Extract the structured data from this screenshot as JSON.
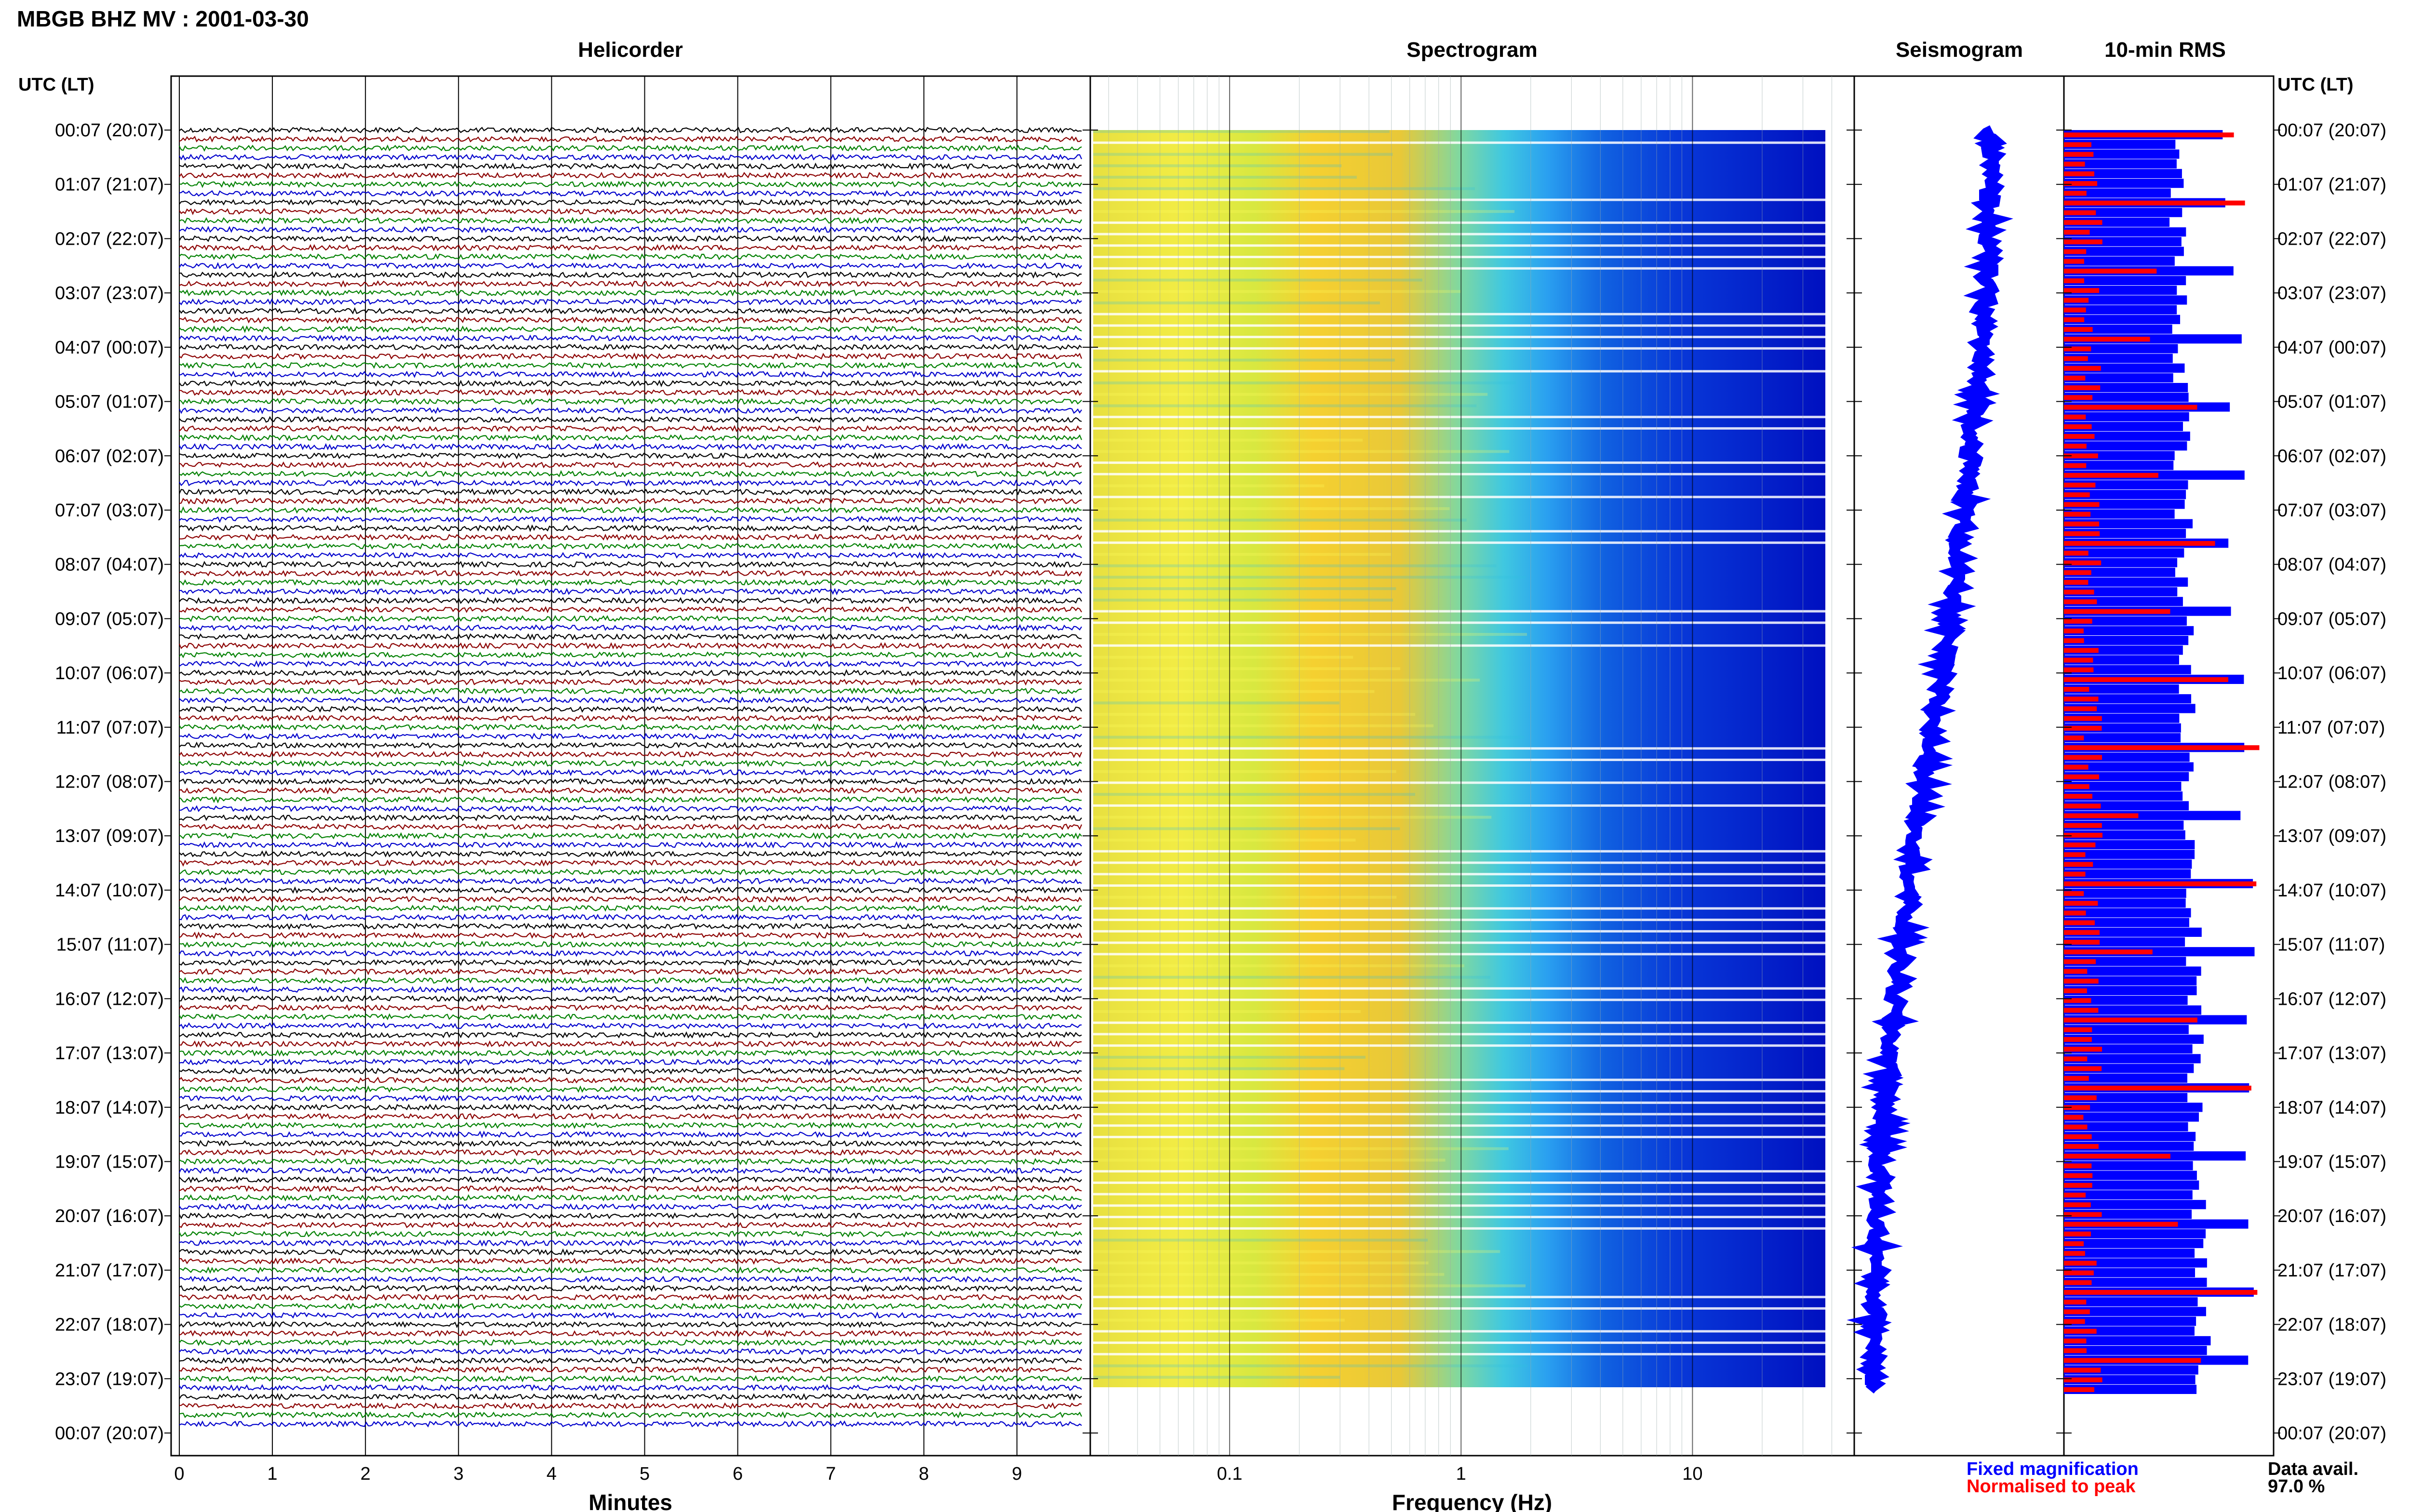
{
  "header": {
    "station_title": "MBGB BHZ MV : 2001-03-30",
    "timezone_label_left": "UTC (LT)",
    "timezone_label_right": "UTC (LT)"
  },
  "panels": {
    "helicorder": {
      "title": "Helicorder",
      "xlabel": "Minutes"
    },
    "spectrogram": {
      "title": "Spectrogram",
      "xlabel": "Frequency (Hz)"
    },
    "seismogram": {
      "title": "Seismogram"
    },
    "rms": {
      "title": "10-min RMS"
    }
  },
  "legend": {
    "fixed_label": "Fixed magnification",
    "normalised_label": "Normalised to peak",
    "data_avail_label": "Data avail.",
    "data_avail_value": "97.0 %"
  },
  "colors": {
    "trace_cycle": [
      "#000000",
      "#8b0000",
      "#008000",
      "#0000cc"
    ],
    "fixed_blue": "#0000ff",
    "normalised_red": "#ff0000",
    "fixed_label": "#0000ff",
    "normalised_label": "#ff0000"
  },
  "chart_data": [
    {
      "type": "line",
      "name": "helicorder",
      "title": "Helicorder",
      "xlabel": "Minutes",
      "x_ticks": [
        "0",
        "1",
        "2",
        "3",
        "4",
        "5",
        "6",
        "7",
        "8",
        "9"
      ],
      "xlim": [
        0,
        10
      ],
      "traces_count": 144,
      "trace_interval_minutes": 10
    },
    {
      "type": "heatmap",
      "name": "spectrogram",
      "title": "Spectrogram",
      "xlabel": "Frequency (Hz)",
      "x_scale": "log",
      "xlim": [
        0.025,
        50
      ],
      "x_ticks": [
        "0.1",
        "1",
        "10"
      ],
      "colormap": [
        "#ffff33",
        "#b0f060",
        "#40e0d0",
        "#1e90ff",
        "#0000cd"
      ]
    },
    {
      "type": "line",
      "name": "seismogram",
      "title": "Seismogram"
    },
    {
      "type": "bar",
      "name": "rms",
      "title": "10-min RMS",
      "series": [
        {
          "name": "Fixed magnification",
          "color": "#0000ff"
        },
        {
          "name": "Normalised to peak",
          "color": "#ff0000"
        }
      ]
    }
  ],
  "time_labels": [
    "00:07 (20:07)",
    "01:07 (21:07)",
    "02:07 (22:07)",
    "03:07 (23:07)",
    "04:07 (00:07)",
    "05:07 (01:07)",
    "06:07 (02:07)",
    "07:07 (03:07)",
    "08:07 (04:07)",
    "09:07 (05:07)",
    "10:07 (06:07)",
    "11:07 (07:07)",
    "12:07 (08:07)",
    "13:07 (09:07)",
    "14:07 (10:07)",
    "15:07 (11:07)",
    "16:07 (12:07)",
    "17:07 (13:07)",
    "18:07 (14:07)",
    "19:07 (15:07)",
    "20:07 (16:07)",
    "21:07 (17:07)",
    "22:07 (18:07)",
    "23:07 (19:07)",
    "00:07 (20:07)"
  ]
}
